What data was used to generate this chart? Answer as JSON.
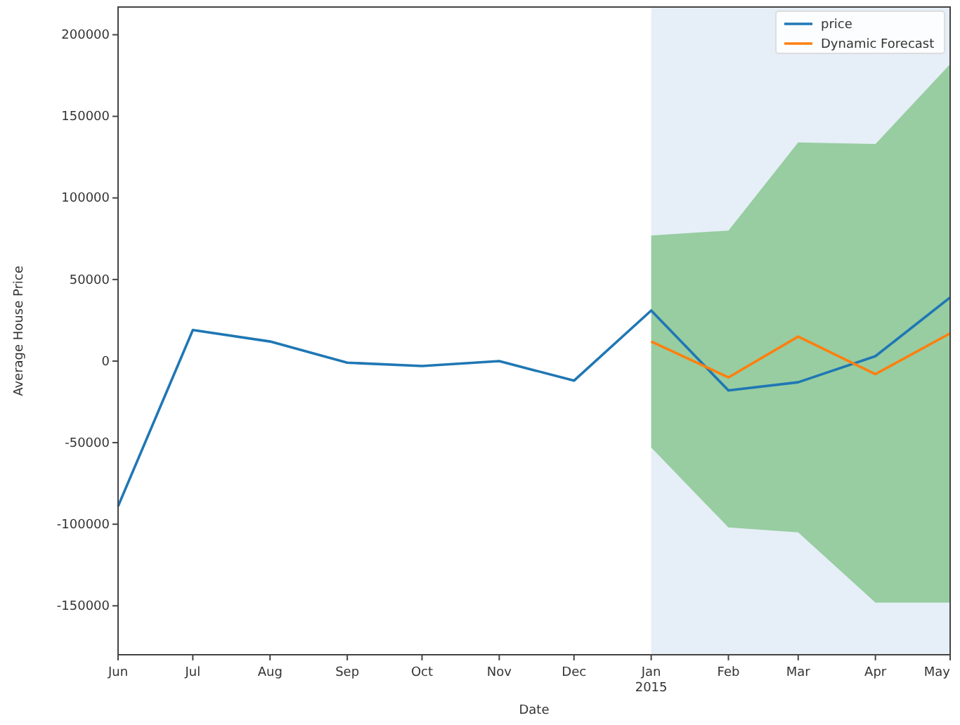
{
  "chart_data": {
    "type": "line",
    "xlabel": "Date",
    "ylabel": "Average House Price",
    "x": [
      "2014-06",
      "2014-07",
      "2014-08",
      "2014-09",
      "2014-10",
      "2014-11",
      "2014-12",
      "2015-01",
      "2015-02",
      "2015-03",
      "2015-04",
      "2015-05"
    ],
    "series": [
      {
        "name": "price",
        "color": "#1f77b4",
        "values": [
          -89000,
          19000,
          12000,
          -1000,
          -3000,
          0,
          -12000,
          31000,
          -18000,
          -13000,
          3000,
          39000
        ]
      },
      {
        "name": "Dynamic Forecast",
        "color": "#ff7f0e",
        "x": [
          "2015-01",
          "2015-02",
          "2015-03",
          "2015-04",
          "2015-05"
        ],
        "values": [
          12000,
          -10000,
          15000,
          -8000,
          17000
        ],
        "lower": [
          -53000,
          -102000,
          -105000,
          -148000,
          -148000
        ],
        "upper": [
          77000,
          80000,
          134000,
          133000,
          182000
        ]
      }
    ],
    "bands": [
      {
        "axis": "x",
        "from": "2015-01",
        "to": "2015-05",
        "color": "#e6eef7"
      }
    ],
    "xlim": [
      "2014-06",
      "2015-05"
    ],
    "xticks": [
      {
        "value": "2014-06",
        "label": "Jun"
      },
      {
        "value": "2014-07",
        "label": "Jul"
      },
      {
        "value": "2014-08",
        "label": "Aug"
      },
      {
        "value": "2014-09",
        "label": "Sep"
      },
      {
        "value": "2014-10",
        "label": "Oct"
      },
      {
        "value": "2014-11",
        "label": "Nov"
      },
      {
        "value": "2014-12",
        "label": "Dec"
      },
      {
        "value": "2015-01",
        "label": "Jan\n2015"
      },
      {
        "value": "2015-02",
        "label": "Feb"
      },
      {
        "value": "2015-03",
        "label": "Mar"
      },
      {
        "value": "2015-04",
        "label": "Apr"
      },
      {
        "value": "2015-05",
        "label": "May"
      }
    ],
    "ylim": [
      -180000,
      217000
    ],
    "yticks": [
      -150000,
      -100000,
      -50000,
      0,
      50000,
      100000,
      150000,
      200000
    ],
    "legend": "top right",
    "grid": false,
    "marker": "none",
    "line_style": "solid"
  }
}
